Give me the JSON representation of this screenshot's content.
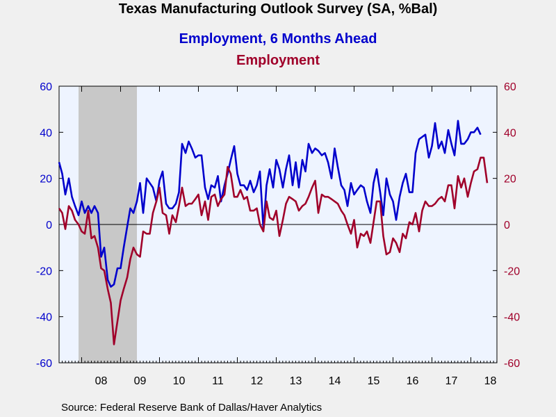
{
  "header": {
    "title": "Texas Manufacturing Outlook Survey (SA, %Bal)",
    "series1_title": "Employment, 6 Months Ahead",
    "series2_title": "Employment"
  },
  "footer": {
    "source": "Source:  Federal Reserve Bank of Dallas/Haver Analytics"
  },
  "chart_data": {
    "type": "line",
    "title": "Texas Manufacturing Outlook Survey (SA, %Bal)",
    "xlabel": "",
    "ylabel": "",
    "ylim": [
      -60,
      60
    ],
    "ylim_right": [
      -60,
      60
    ],
    "yticks": [
      -60,
      -40,
      -20,
      0,
      20,
      40,
      60
    ],
    "xlim": [
      2007.42,
      2018.67
    ],
    "year_labels": [
      "08",
      "09",
      "10",
      "11",
      "12",
      "13",
      "14",
      "15",
      "16",
      "17",
      "18"
    ],
    "recession": {
      "start": 2007.92,
      "end": 2009.42
    },
    "grid": false,
    "zero_line": true,
    "colors": {
      "series1": "#0000cc",
      "series2": "#a0002a",
      "recession": "#c8c8c8",
      "plot_bg": "#eef4ff",
      "page_bg": "#f0f0f0"
    },
    "series": [
      {
        "name": "Employment, 6 Months Ahead",
        "axis": "left",
        "color": "#0000cc",
        "points": [
          [
            2007.42,
            27
          ],
          [
            2007.5,
            22
          ],
          [
            2007.58,
            13
          ],
          [
            2007.67,
            20
          ],
          [
            2007.75,
            12
          ],
          [
            2007.83,
            8
          ],
          [
            2007.92,
            4
          ],
          [
            2008.0,
            10
          ],
          [
            2008.08,
            5
          ],
          [
            2008.17,
            8
          ],
          [
            2008.25,
            5
          ],
          [
            2008.33,
            8
          ],
          [
            2008.42,
            5
          ],
          [
            2008.5,
            -14
          ],
          [
            2008.58,
            -10
          ],
          [
            2008.67,
            -24
          ],
          [
            2008.75,
            -27
          ],
          [
            2008.83,
            -26
          ],
          [
            2008.92,
            -19
          ],
          [
            2009.0,
            -19
          ],
          [
            2009.08,
            -10
          ],
          [
            2009.17,
            -1
          ],
          [
            2009.25,
            7
          ],
          [
            2009.33,
            5
          ],
          [
            2009.42,
            10
          ],
          [
            2009.5,
            18
          ],
          [
            2009.58,
            5
          ],
          [
            2009.67,
            20
          ],
          [
            2009.75,
            18
          ],
          [
            2009.83,
            16
          ],
          [
            2009.92,
            10
          ],
          [
            2010.0,
            19
          ],
          [
            2010.08,
            23
          ],
          [
            2010.17,
            9
          ],
          [
            2010.25,
            7
          ],
          [
            2010.33,
            7
          ],
          [
            2010.42,
            9
          ],
          [
            2010.5,
            14
          ],
          [
            2010.58,
            35
          ],
          [
            2010.67,
            31
          ],
          [
            2010.75,
            36
          ],
          [
            2010.83,
            33
          ],
          [
            2010.92,
            29
          ],
          [
            2011.0,
            30
          ],
          [
            2011.08,
            30
          ],
          [
            2011.17,
            16
          ],
          [
            2011.25,
            11
          ],
          [
            2011.33,
            17
          ],
          [
            2011.42,
            16
          ],
          [
            2011.5,
            21
          ],
          [
            2011.58,
            10
          ],
          [
            2011.67,
            17
          ],
          [
            2011.75,
            22
          ],
          [
            2011.83,
            28
          ],
          [
            2011.92,
            34
          ],
          [
            2012.0,
            22
          ],
          [
            2012.08,
            17
          ],
          [
            2012.17,
            17
          ],
          [
            2012.25,
            15
          ],
          [
            2012.33,
            19
          ],
          [
            2012.42,
            14
          ],
          [
            2012.5,
            17
          ],
          [
            2012.58,
            23
          ],
          [
            2012.67,
            -2
          ],
          [
            2012.75,
            17
          ],
          [
            2012.83,
            24
          ],
          [
            2012.92,
            16
          ],
          [
            2013.0,
            28
          ],
          [
            2013.08,
            24
          ],
          [
            2013.17,
            16
          ],
          [
            2013.25,
            24
          ],
          [
            2013.33,
            30
          ],
          [
            2013.42,
            17
          ],
          [
            2013.5,
            27
          ],
          [
            2013.58,
            16
          ],
          [
            2013.67,
            28
          ],
          [
            2013.75,
            23
          ],
          [
            2013.83,
            35
          ],
          [
            2013.92,
            31
          ],
          [
            2014.0,
            33
          ],
          [
            2014.08,
            32
          ],
          [
            2014.17,
            30
          ],
          [
            2014.25,
            31
          ],
          [
            2014.33,
            27
          ],
          [
            2014.42,
            20
          ],
          [
            2014.5,
            33
          ],
          [
            2014.58,
            25
          ],
          [
            2014.67,
            17
          ],
          [
            2014.75,
            15
          ],
          [
            2014.83,
            8
          ],
          [
            2014.92,
            18
          ],
          [
            2015.0,
            13
          ],
          [
            2015.08,
            15
          ],
          [
            2015.17,
            17
          ],
          [
            2015.25,
            16
          ],
          [
            2015.33,
            10
          ],
          [
            2015.42,
            5
          ],
          [
            2015.5,
            18
          ],
          [
            2015.58,
            24
          ],
          [
            2015.67,
            14
          ],
          [
            2015.75,
            4
          ],
          [
            2015.83,
            20
          ],
          [
            2015.92,
            13
          ],
          [
            2016.0,
            10
          ],
          [
            2016.08,
            2
          ],
          [
            2016.17,
            12
          ],
          [
            2016.25,
            18
          ],
          [
            2016.33,
            22
          ],
          [
            2016.42,
            14
          ],
          [
            2016.5,
            14
          ],
          [
            2016.58,
            31
          ],
          [
            2016.67,
            37
          ],
          [
            2016.75,
            38
          ],
          [
            2016.83,
            39
          ],
          [
            2016.92,
            29
          ],
          [
            2017.0,
            34
          ],
          [
            2017.08,
            44
          ],
          [
            2017.17,
            33
          ],
          [
            2017.25,
            36
          ],
          [
            2017.33,
            31
          ],
          [
            2017.42,
            41
          ],
          [
            2017.5,
            35
          ],
          [
            2017.58,
            30
          ],
          [
            2017.67,
            45
          ],
          [
            2017.75,
            35
          ],
          [
            2017.83,
            35
          ],
          [
            2017.92,
            37
          ],
          [
            2018.0,
            40
          ],
          [
            2018.08,
            40
          ],
          [
            2018.17,
            42
          ],
          [
            2018.25,
            39
          ]
        ]
      },
      {
        "name": "Employment",
        "axis": "right",
        "color": "#a0002a",
        "points": [
          [
            2007.42,
            7
          ],
          [
            2007.5,
            5
          ],
          [
            2007.58,
            -2
          ],
          [
            2007.67,
            8
          ],
          [
            2007.75,
            6
          ],
          [
            2007.83,
            2
          ],
          [
            2007.92,
            0
          ],
          [
            2008.0,
            -3
          ],
          [
            2008.08,
            -4
          ],
          [
            2008.17,
            6
          ],
          [
            2008.25,
            -6
          ],
          [
            2008.33,
            -5
          ],
          [
            2008.42,
            -10
          ],
          [
            2008.5,
            -19
          ],
          [
            2008.58,
            -20
          ],
          [
            2008.67,
            -28
          ],
          [
            2008.75,
            -34
          ],
          [
            2008.83,
            -52
          ],
          [
            2008.92,
            -42
          ],
          [
            2009.0,
            -33
          ],
          [
            2009.08,
            -28
          ],
          [
            2009.17,
            -23
          ],
          [
            2009.25,
            -15
          ],
          [
            2009.33,
            -10
          ],
          [
            2009.42,
            -13
          ],
          [
            2009.5,
            -14
          ],
          [
            2009.58,
            -3
          ],
          [
            2009.67,
            -4
          ],
          [
            2009.75,
            -4
          ],
          [
            2009.83,
            5
          ],
          [
            2009.92,
            10
          ],
          [
            2010.0,
            16
          ],
          [
            2010.08,
            5
          ],
          [
            2010.17,
            4
          ],
          [
            2010.25,
            -4
          ],
          [
            2010.33,
            4
          ],
          [
            2010.42,
            1
          ],
          [
            2010.5,
            8
          ],
          [
            2010.58,
            16
          ],
          [
            2010.67,
            8
          ],
          [
            2010.75,
            9
          ],
          [
            2010.83,
            9
          ],
          [
            2010.92,
            11
          ],
          [
            2011.0,
            13
          ],
          [
            2011.08,
            4
          ],
          [
            2011.17,
            10
          ],
          [
            2011.25,
            2
          ],
          [
            2011.33,
            12
          ],
          [
            2011.42,
            13
          ],
          [
            2011.5,
            8
          ],
          [
            2011.58,
            11
          ],
          [
            2011.67,
            13
          ],
          [
            2011.75,
            25
          ],
          [
            2011.83,
            22
          ],
          [
            2011.92,
            12
          ],
          [
            2012.0,
            12
          ],
          [
            2012.08,
            15
          ],
          [
            2012.17,
            11
          ],
          [
            2012.25,
            12
          ],
          [
            2012.33,
            6
          ],
          [
            2012.42,
            6
          ],
          [
            2012.5,
            7
          ],
          [
            2012.58,
            0
          ],
          [
            2012.67,
            -3
          ],
          [
            2012.75,
            10
          ],
          [
            2012.83,
            3
          ],
          [
            2012.92,
            2
          ],
          [
            2013.0,
            6
          ],
          [
            2013.08,
            -5
          ],
          [
            2013.17,
            2
          ],
          [
            2013.25,
            9
          ],
          [
            2013.33,
            12
          ],
          [
            2013.42,
            11
          ],
          [
            2013.5,
            10
          ],
          [
            2013.58,
            6
          ],
          [
            2013.67,
            8
          ],
          [
            2013.75,
            9
          ],
          [
            2013.83,
            12
          ],
          [
            2013.92,
            16
          ],
          [
            2014.0,
            19
          ],
          [
            2014.08,
            5
          ],
          [
            2014.17,
            13
          ],
          [
            2014.25,
            12
          ],
          [
            2014.33,
            12
          ],
          [
            2014.42,
            11
          ],
          [
            2014.5,
            10
          ],
          [
            2014.58,
            9
          ],
          [
            2014.67,
            6
          ],
          [
            2014.75,
            4
          ],
          [
            2014.83,
            0
          ],
          [
            2014.92,
            -4
          ],
          [
            2015.0,
            2
          ],
          [
            2015.08,
            -10
          ],
          [
            2015.17,
            -4
          ],
          [
            2015.25,
            -5
          ],
          [
            2015.33,
            -3
          ],
          [
            2015.42,
            -8
          ],
          [
            2015.5,
            1
          ],
          [
            2015.58,
            10
          ],
          [
            2015.67,
            10
          ],
          [
            2015.75,
            -5
          ],
          [
            2015.83,
            -13
          ],
          [
            2015.92,
            -12
          ],
          [
            2016.0,
            -6
          ],
          [
            2016.08,
            -8
          ],
          [
            2016.17,
            -12
          ],
          [
            2016.25,
            -4
          ],
          [
            2016.33,
            -6
          ],
          [
            2016.42,
            1
          ],
          [
            2016.5,
            0
          ],
          [
            2016.58,
            5
          ],
          [
            2016.67,
            -3
          ],
          [
            2016.75,
            6
          ],
          [
            2016.83,
            10
          ],
          [
            2016.92,
            8
          ],
          [
            2017.0,
            8
          ],
          [
            2017.08,
            9
          ],
          [
            2017.17,
            11
          ],
          [
            2017.25,
            12
          ],
          [
            2017.33,
            10
          ],
          [
            2017.42,
            17
          ],
          [
            2017.5,
            17
          ],
          [
            2017.58,
            7
          ],
          [
            2017.67,
            21
          ],
          [
            2017.75,
            16
          ],
          [
            2017.83,
            20
          ],
          [
            2017.92,
            12
          ],
          [
            2018.0,
            18
          ],
          [
            2018.08,
            23
          ],
          [
            2018.17,
            24
          ],
          [
            2018.25,
            29
          ],
          [
            2018.33,
            29
          ],
          [
            2018.42,
            18
          ]
        ]
      }
    ]
  }
}
